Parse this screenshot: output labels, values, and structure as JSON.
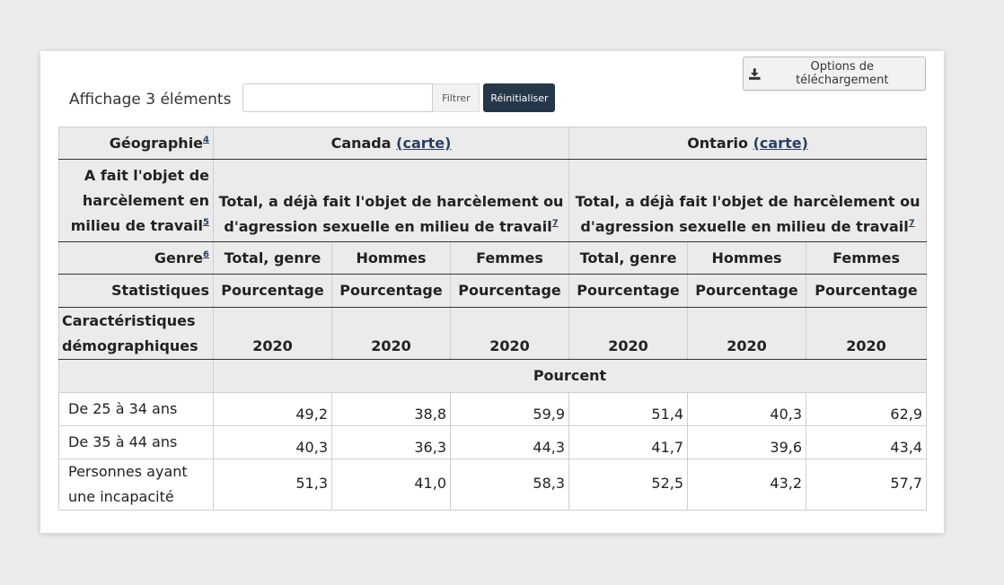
{
  "toolbar": {
    "download_label": "Options de téléchargement",
    "count_label": "Affichage 3 éléments",
    "filter_value": "",
    "filter_placeholder": "",
    "filter_label": "Filtrer",
    "reset_label": "Réinitialiser"
  },
  "table": {
    "geo_label": "Géographie",
    "geo_sup": "4",
    "regions": [
      {
        "name": "Canada",
        "link": "(carte)"
      },
      {
        "name": "Ontario",
        "link": "(carte)"
      }
    ],
    "harass_label": "A fait l'objet de harcèlement en milieu de travail",
    "harass_sup": "5",
    "harass_value": "Total, a déjà fait l'objet de harcèlement ou d'agression sexuelle en milieu de travail",
    "harass_value_sup": "7",
    "genre_label": "Genre",
    "genre_sup": "6",
    "genres": [
      "Total, genre",
      "Hommes",
      "Femmes",
      "Total, genre",
      "Hommes",
      "Femmes"
    ],
    "stat_label": "Statistiques",
    "stat_value": "Pourcentage",
    "demo_label": "Caractéristiques démographiques",
    "year": "2020",
    "unit": "Pourcent",
    "rows": [
      {
        "label": "De 25 à 34 ans",
        "values": [
          "49,2",
          "38,8",
          "59,9",
          "51,4",
          "40,3",
          "62,9"
        ]
      },
      {
        "label": "De 35 à 44 ans",
        "values": [
          "40,3",
          "36,3",
          "44,3",
          "41,7",
          "39,6",
          "43,4"
        ]
      },
      {
        "label": "Personnes ayant une incapacité",
        "values": [
          "51,3",
          "41,0",
          "58,3",
          "52,5",
          "43,2",
          "57,7"
        ]
      }
    ]
  }
}
